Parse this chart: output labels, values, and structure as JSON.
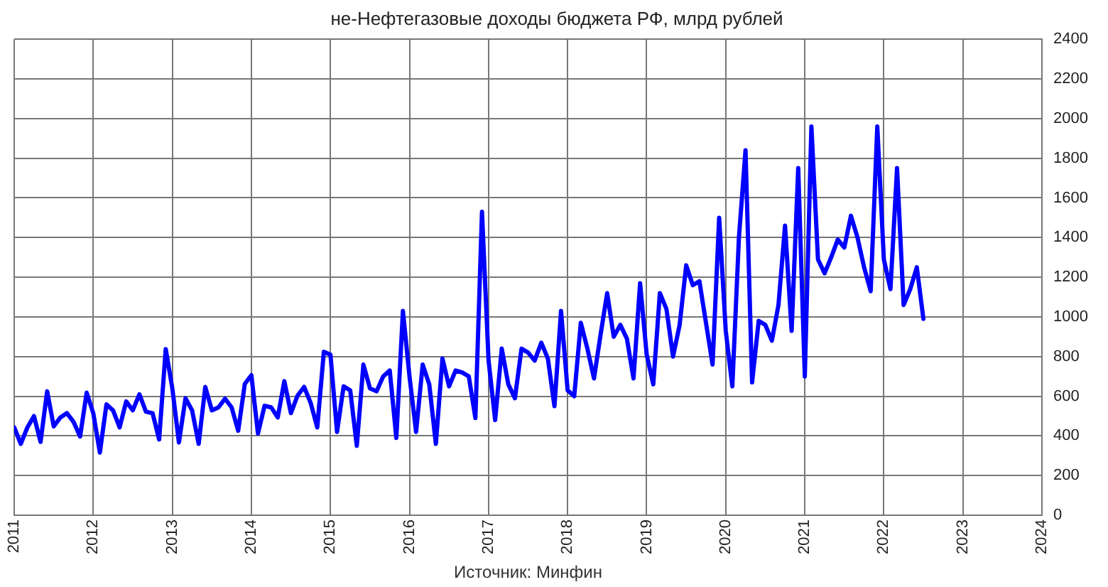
{
  "chart_data": {
    "type": "line",
    "title": "не-Нефтегазовые доходы бюджета РФ, млрд рублей",
    "annotations": [
      "Источник: Минфин"
    ],
    "x": [
      "2011-01",
      "2011-02",
      "2011-03",
      "2011-04",
      "2011-05",
      "2011-06",
      "2011-07",
      "2011-08",
      "2011-09",
      "2011-10",
      "2011-11",
      "2011-12",
      "2012-01",
      "2012-02",
      "2012-03",
      "2012-04",
      "2012-05",
      "2012-06",
      "2012-07",
      "2012-08",
      "2012-09",
      "2012-10",
      "2012-11",
      "2012-12",
      "2013-01",
      "2013-02",
      "2013-03",
      "2013-04",
      "2013-05",
      "2013-06",
      "2013-07",
      "2013-08",
      "2013-09",
      "2013-10",
      "2013-11",
      "2013-12",
      "2014-01",
      "2014-02",
      "2014-03",
      "2014-04",
      "2014-05",
      "2014-06",
      "2014-07",
      "2014-08",
      "2014-09",
      "2014-10",
      "2014-11",
      "2014-12",
      "2015-01",
      "2015-02",
      "2015-03",
      "2015-04",
      "2015-05",
      "2015-06",
      "2015-07",
      "2015-08",
      "2015-09",
      "2015-10",
      "2015-11",
      "2015-12",
      "2016-01",
      "2016-02",
      "2016-03",
      "2016-04",
      "2016-05",
      "2016-06",
      "2016-07",
      "2016-08",
      "2016-09",
      "2016-10",
      "2016-11",
      "2016-12",
      "2017-01",
      "2017-02",
      "2017-03",
      "2017-04",
      "2017-05",
      "2017-06",
      "2017-07",
      "2017-08",
      "2017-09",
      "2017-10",
      "2017-11",
      "2017-12",
      "2018-01",
      "2018-02",
      "2018-03",
      "2018-04",
      "2018-05",
      "2018-06",
      "2018-07",
      "2018-08",
      "2018-09",
      "2018-10",
      "2018-11",
      "2018-12",
      "2019-01",
      "2019-02",
      "2019-03",
      "2019-04",
      "2019-05",
      "2019-06",
      "2019-07",
      "2019-08",
      "2019-09",
      "2019-10",
      "2019-11",
      "2019-12",
      "2020-01",
      "2020-02",
      "2020-03",
      "2020-04",
      "2020-05",
      "2020-06",
      "2020-07",
      "2020-08",
      "2020-09",
      "2020-10",
      "2020-11",
      "2020-12",
      "2021-01",
      "2021-02",
      "2021-03",
      "2021-04",
      "2021-05",
      "2021-06",
      "2021-07",
      "2021-08",
      "2021-09",
      "2021-10",
      "2021-11",
      "2021-12",
      "2022-01",
      "2022-02",
      "2022-03",
      "2022-04",
      "2022-05",
      "2022-06",
      "2022-07"
    ],
    "series": [
      {
        "color": "#0000ff",
        "values": [
          443,
          360,
          443,
          500,
          370,
          625,
          448,
          493,
          515,
          471,
          397,
          618,
          515,
          316,
          559,
          529,
          443,
          574,
          529,
          610,
          522,
          515,
          382,
          838,
          640,
          367,
          590,
          529,
          360,
          647,
          529,
          544,
          588,
          544,
          426,
          662,
          706,
          412,
          552,
          544,
          493,
          676,
          515,
          603,
          647,
          566,
          443,
          824,
          810,
          420,
          650,
          630,
          350,
          760,
          640,
          625,
          700,
          730,
          390,
          1030,
          700,
          420,
          760,
          660,
          360,
          790,
          650,
          730,
          720,
          700,
          490,
          1530,
          780,
          480,
          840,
          660,
          590,
          840,
          820,
          780,
          870,
          790,
          550,
          1030,
          630,
          600,
          970,
          840,
          690,
          910,
          1120,
          900,
          960,
          890,
          690,
          1170,
          810,
          660,
          1120,
          1040,
          800,
          960,
          1260,
          1160,
          1180,
          970,
          760,
          1500,
          930,
          650,
          1400,
          1840,
          670,
          980,
          960,
          880,
          1060,
          1460,
          930,
          1750,
          700,
          1960,
          1290,
          1220,
          1300,
          1390,
          1350,
          1510,
          1400,
          1250,
          1130,
          1960,
          1290,
          1140,
          1750,
          1060,
          1140,
          1250,
          990
        ]
      }
    ],
    "xlim": [
      "2011",
      "2024"
    ],
    "xticks": [
      "2011",
      "2012",
      "2013",
      "2014",
      "2015",
      "2016",
      "2017",
      "2018",
      "2019",
      "2020",
      "2021",
      "2022",
      "2023",
      "2024"
    ],
    "ylim": [
      0,
      2400
    ],
    "yticks": [
      0,
      200,
      400,
      600,
      800,
      1000,
      1200,
      1400,
      1600,
      1800,
      2000,
      2200,
      2400
    ],
    "grid": true,
    "legend": false,
    "marker": "none",
    "line_style": "solid"
  }
}
